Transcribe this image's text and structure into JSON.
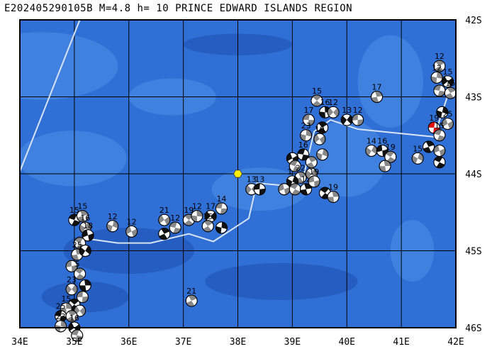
{
  "title": "E202405290105B M=4.8 h= 10 PRINCE EDWARD ISLANDS REGION",
  "map": {
    "lon_range": [
      34,
      42
    ],
    "lat_range": [
      -46,
      -42
    ],
    "lon_ticks": [
      "34E",
      "35E",
      "36E",
      "37E",
      "38E",
      "39E",
      "40E",
      "41E",
      "42E"
    ],
    "lat_ticks": [
      "42S",
      "43S",
      "44S",
      "45S",
      "46S"
    ],
    "colors": {
      "ocean": "#2f6fd6",
      "ridge": "#4f8fe8",
      "deep": "#1d4fb0",
      "grid": "#000000",
      "plate": "#d8e4f4"
    },
    "epicenter": {
      "lon": 38.0,
      "lat": -44.0,
      "color": "#ffee00"
    },
    "plate_boundaries": [
      [
        [
          34.0,
          -43.97
        ],
        [
          35.1,
          -42.0
        ]
      ],
      [
        [
          35.3,
          -44.85
        ],
        [
          35.8,
          -44.9
        ],
        [
          36.4,
          -44.9
        ],
        [
          37.1,
          -44.78
        ],
        [
          37.55,
          -44.88
        ],
        [
          38.2,
          -44.58
        ],
        [
          38.35,
          -44.12
        ],
        [
          38.8,
          -44.15
        ],
        [
          39.0,
          -44.12
        ],
        [
          39.2,
          -44.05
        ],
        [
          39.4,
          -43.45
        ],
        [
          39.7,
          -43.3
        ],
        [
          40.2,
          -43.42
        ],
        [
          41.6,
          -43.52
        ],
        [
          41.9,
          -42.88
        ]
      ]
    ],
    "events": [
      {
        "lon": 41.6,
        "lat": -43.4,
        "mag": "19",
        "hl": true
      },
      {
        "lon": 41.7,
        "lat": -42.6,
        "mag": "12"
      },
      {
        "lon": 41.65,
        "lat": -42.75,
        "mag": "12"
      },
      {
        "lon": 41.85,
        "lat": -42.8,
        "mag": "15"
      },
      {
        "lon": 41.7,
        "lat": -42.92,
        "mag": ""
      },
      {
        "lon": 41.9,
        "lat": -42.95,
        "mag": "15"
      },
      {
        "lon": 41.75,
        "lat": -43.2,
        "mag": ""
      },
      {
        "lon": 41.85,
        "lat": -43.35,
        "mag": "25"
      },
      {
        "lon": 41.7,
        "lat": -43.5,
        "mag": "15"
      },
      {
        "lon": 41.5,
        "lat": -43.65,
        "mag": ""
      },
      {
        "lon": 41.3,
        "lat": -43.8,
        "mag": "15"
      },
      {
        "lon": 41.7,
        "lat": -43.7,
        "mag": ""
      },
      {
        "lon": 41.7,
        "lat": -43.85,
        "mag": ""
      },
      {
        "lon": 40.55,
        "lat": -43.0,
        "mag": "17"
      },
      {
        "lon": 40.45,
        "lat": -43.7,
        "mag": "14"
      },
      {
        "lon": 40.65,
        "lat": -43.7,
        "mag": "16"
      },
      {
        "lon": 40.8,
        "lat": -43.78,
        "mag": "19"
      },
      {
        "lon": 40.7,
        "lat": -43.9,
        "mag": ""
      },
      {
        "lon": 40.0,
        "lat": -43.3,
        "mag": "13"
      },
      {
        "lon": 40.2,
        "lat": -43.3,
        "mag": "12"
      },
      {
        "lon": 39.45,
        "lat": -43.05,
        "mag": "15"
      },
      {
        "lon": 39.6,
        "lat": -43.2,
        "mag": "16"
      },
      {
        "lon": 39.75,
        "lat": -43.2,
        "mag": "12"
      },
      {
        "lon": 39.3,
        "lat": -43.3,
        "mag": "17"
      },
      {
        "lon": 39.55,
        "lat": -43.4,
        "mag": ""
      },
      {
        "lon": 39.25,
        "lat": -43.5,
        "mag": "23"
      },
      {
        "lon": 39.5,
        "lat": -43.55,
        "mag": "10"
      },
      {
        "lon": 39.2,
        "lat": -43.75,
        "mag": "16"
      },
      {
        "lon": 39.35,
        "lat": -43.85,
        "mag": ""
      },
      {
        "lon": 39.55,
        "lat": -43.75,
        "mag": ""
      },
      {
        "lon": 39.0,
        "lat": -43.8,
        "mag": ""
      },
      {
        "lon": 39.05,
        "lat": -43.9,
        "mag": ""
      },
      {
        "lon": 39.15,
        "lat": -44.05,
        "mag": "22"
      },
      {
        "lon": 39.0,
        "lat": -44.1,
        "mag": "1"
      },
      {
        "lon": 38.85,
        "lat": -44.2,
        "mag": ""
      },
      {
        "lon": 39.05,
        "lat": -44.2,
        "mag": ""
      },
      {
        "lon": 39.25,
        "lat": -44.2,
        "mag": "12"
      },
      {
        "lon": 39.35,
        "lat": -44.0,
        "mag": ""
      },
      {
        "lon": 39.4,
        "lat": -44.1,
        "mag": "19"
      },
      {
        "lon": 39.6,
        "lat": -44.25,
        "mag": ""
      },
      {
        "lon": 39.75,
        "lat": -44.3,
        "mag": "19"
      },
      {
        "lon": 38.25,
        "lat": -44.2,
        "mag": "13"
      },
      {
        "lon": 38.4,
        "lat": -44.2,
        "mag": "13"
      },
      {
        "lon": 37.1,
        "lat": -44.6,
        "mag": "19"
      },
      {
        "lon": 37.25,
        "lat": -44.55,
        "mag": "12"
      },
      {
        "lon": 37.5,
        "lat": -44.55,
        "mag": "17"
      },
      {
        "lon": 37.7,
        "lat": -44.45,
        "mag": "14"
      },
      {
        "lon": 37.45,
        "lat": -44.68,
        "mag": "15"
      },
      {
        "lon": 37.7,
        "lat": -44.7,
        "mag": ""
      },
      {
        "lon": 36.65,
        "lat": -44.6,
        "mag": "21"
      },
      {
        "lon": 36.85,
        "lat": -44.7,
        "mag": "12"
      },
      {
        "lon": 36.65,
        "lat": -44.78,
        "mag": ""
      },
      {
        "lon": 35.7,
        "lat": -44.68,
        "mag": "12"
      },
      {
        "lon": 36.05,
        "lat": -44.75,
        "mag": "12"
      },
      {
        "lon": 35.0,
        "lat": -44.6,
        "mag": "15"
      },
      {
        "lon": 35.15,
        "lat": -44.55,
        "mag": "15"
      },
      {
        "lon": 35.2,
        "lat": -44.7,
        "mag": "16"
      },
      {
        "lon": 35.25,
        "lat": -44.8,
        "mag": "18"
      },
      {
        "lon": 35.1,
        "lat": -44.9,
        "mag": ""
      },
      {
        "lon": 35.05,
        "lat": -45.05,
        "mag": "25"
      },
      {
        "lon": 35.2,
        "lat": -45.0,
        "mag": ""
      },
      {
        "lon": 34.95,
        "lat": -45.2,
        "mag": ""
      },
      {
        "lon": 35.1,
        "lat": -45.3,
        "mag": "5"
      },
      {
        "lon": 35.2,
        "lat": -45.45,
        "mag": ""
      },
      {
        "lon": 34.95,
        "lat": -45.5,
        "mag": "23"
      },
      {
        "lon": 35.15,
        "lat": -45.6,
        "mag": ""
      },
      {
        "lon": 35.0,
        "lat": -45.7,
        "mag": ""
      },
      {
        "lon": 34.85,
        "lat": -45.75,
        "mag": "15"
      },
      {
        "lon": 35.1,
        "lat": -45.78,
        "mag": ""
      },
      {
        "lon": 34.75,
        "lat": -45.85,
        "mag": "25"
      },
      {
        "lon": 34.95,
        "lat": -45.85,
        "mag": ""
      },
      {
        "lon": 34.75,
        "lat": -45.98,
        "mag": "23"
      },
      {
        "lon": 35.0,
        "lat": -46.0,
        "mag": "16"
      },
      {
        "lon": 35.05,
        "lat": -46.1,
        "mag": ""
      },
      {
        "lon": 37.15,
        "lat": -45.65,
        "mag": "21"
      }
    ]
  }
}
